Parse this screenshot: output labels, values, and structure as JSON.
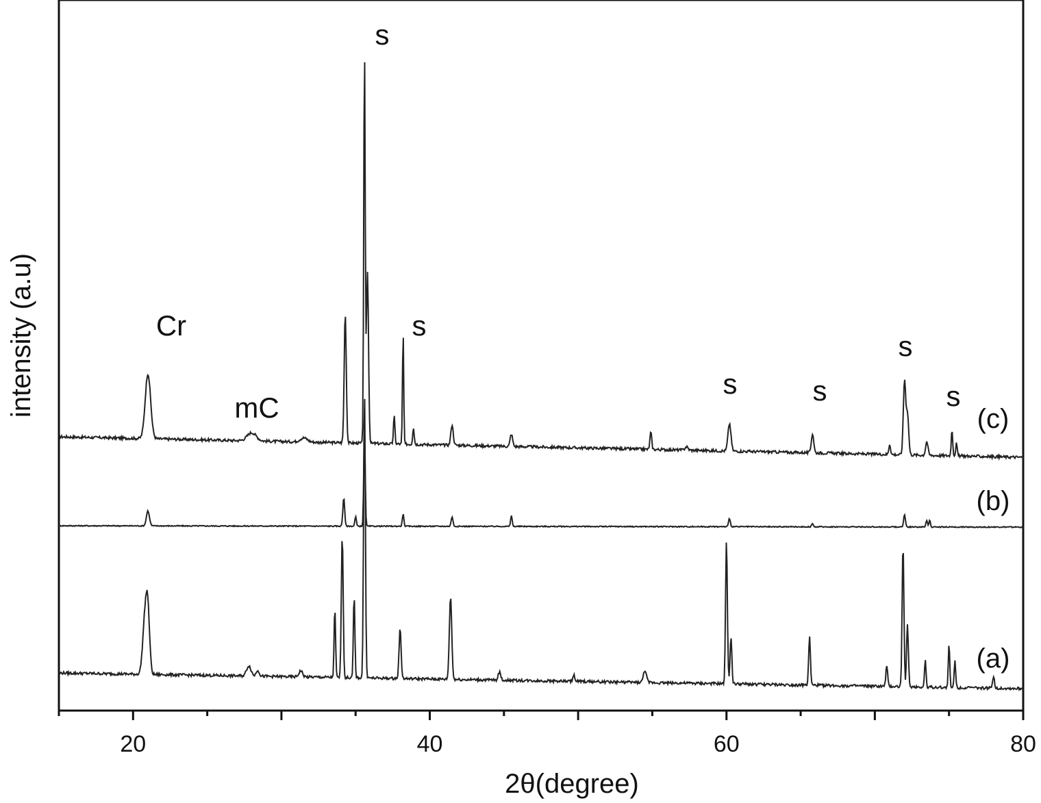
{
  "chart_data": {
    "type": "line",
    "title": "",
    "xlabel": "2θ(degree)",
    "ylabel": "intensity (a.u)",
    "xlim": [
      15,
      80
    ],
    "x_ticks": [
      20,
      40,
      60,
      80
    ],
    "x_tick_labels": [
      "20",
      "40",
      "60",
      "80"
    ],
    "y_tick_labels": [],
    "grid": false,
    "legend": "none",
    "line_color": "#222222",
    "series": [
      {
        "name": "(c)",
        "baseline_start": 190,
        "baseline_end": 160,
        "peaks": [
          {
            "x": 21.0,
            "h": 95,
            "w": 0.18
          },
          {
            "x": 28.0,
            "h": 12,
            "w": 0.3
          },
          {
            "x": 31.5,
            "h": 6,
            "w": 0.25
          },
          {
            "x": 34.3,
            "h": 190,
            "w": 0.07
          },
          {
            "x": 35.6,
            "h": 570,
            "w": 0.05
          },
          {
            "x": 35.8,
            "h": 250,
            "w": 0.07
          },
          {
            "x": 37.6,
            "h": 40,
            "w": 0.05
          },
          {
            "x": 38.2,
            "h": 165,
            "w": 0.04
          },
          {
            "x": 38.9,
            "h": 25,
            "w": 0.05
          },
          {
            "x": 41.5,
            "h": 30,
            "w": 0.08
          },
          {
            "x": 45.5,
            "h": 18,
            "w": 0.08
          },
          {
            "x": 54.9,
            "h": 25,
            "w": 0.06
          },
          {
            "x": 57.3,
            "h": 5,
            "w": 0.1
          },
          {
            "x": 60.2,
            "h": 40,
            "w": 0.1
          },
          {
            "x": 65.8,
            "h": 28,
            "w": 0.08
          },
          {
            "x": 71.0,
            "h": 15,
            "w": 0.06
          },
          {
            "x": 72.0,
            "h": 108,
            "w": 0.08
          },
          {
            "x": 72.2,
            "h": 60,
            "w": 0.08
          },
          {
            "x": 73.5,
            "h": 20,
            "w": 0.08
          },
          {
            "x": 75.2,
            "h": 38,
            "w": 0.05
          },
          {
            "x": 75.5,
            "h": 18,
            "w": 0.05
          }
        ]
      },
      {
        "name": "(b)",
        "baseline_start": 70,
        "baseline_end": 68,
        "peaks": [
          {
            "x": 21.0,
            "h": 22,
            "w": 0.1
          },
          {
            "x": 34.2,
            "h": 42,
            "w": 0.06
          },
          {
            "x": 35.0,
            "h": 14,
            "w": 0.05
          },
          {
            "x": 35.6,
            "h": 140,
            "w": 0.05
          },
          {
            "x": 38.2,
            "h": 18,
            "w": 0.05
          },
          {
            "x": 41.5,
            "h": 14,
            "w": 0.06
          },
          {
            "x": 45.5,
            "h": 16,
            "w": 0.05
          },
          {
            "x": 60.2,
            "h": 12,
            "w": 0.06
          },
          {
            "x": 65.8,
            "h": 4,
            "w": 0.06
          },
          {
            "x": 72.0,
            "h": 18,
            "w": 0.06
          },
          {
            "x": 73.5,
            "h": 10,
            "w": 0.05
          },
          {
            "x": 73.7,
            "h": 10,
            "w": 0.05
          }
        ]
      },
      {
        "name": "(a)",
        "baseline_start": 55,
        "baseline_end": 32,
        "peaks": [
          {
            "x": 20.8,
            "h": 80,
            "w": 0.15
          },
          {
            "x": 21.0,
            "h": 80,
            "w": 0.12
          },
          {
            "x": 27.8,
            "h": 15,
            "w": 0.15
          },
          {
            "x": 28.4,
            "h": 9,
            "w": 0.1
          },
          {
            "x": 31.3,
            "h": 9,
            "w": 0.12
          },
          {
            "x": 33.6,
            "h": 100,
            "w": 0.05
          },
          {
            "x": 34.1,
            "h": 210,
            "w": 0.06
          },
          {
            "x": 34.9,
            "h": 120,
            "w": 0.05
          },
          {
            "x": 35.6,
            "h": 420,
            "w": 0.06
          },
          {
            "x": 38.0,
            "h": 72,
            "w": 0.07
          },
          {
            "x": 41.4,
            "h": 120,
            "w": 0.08
          },
          {
            "x": 44.7,
            "h": 12,
            "w": 0.08
          },
          {
            "x": 49.7,
            "h": 10,
            "w": 0.06
          },
          {
            "x": 54.5,
            "h": 18,
            "w": 0.1
          },
          {
            "x": 60.0,
            "h": 210,
            "w": 0.06
          },
          {
            "x": 60.3,
            "h": 70,
            "w": 0.06
          },
          {
            "x": 65.6,
            "h": 70,
            "w": 0.06
          },
          {
            "x": 70.8,
            "h": 30,
            "w": 0.06
          },
          {
            "x": 71.9,
            "h": 210,
            "w": 0.06
          },
          {
            "x": 72.2,
            "h": 90,
            "w": 0.06
          },
          {
            "x": 73.4,
            "h": 40,
            "w": 0.05
          },
          {
            "x": 75.0,
            "h": 62,
            "w": 0.05
          },
          {
            "x": 75.4,
            "h": 40,
            "w": 0.05
          },
          {
            "x": 78.0,
            "h": 18,
            "w": 0.06
          }
        ]
      }
    ],
    "annotations": [
      {
        "text": "Cr",
        "x": 21.0,
        "series": "(c)",
        "dy": 0
      },
      {
        "text": "mC",
        "x": 28.0,
        "series": "(c)",
        "dy": 0
      },
      {
        "text": "s",
        "x": 36.2,
        "series": "(c)",
        "dy": 0
      },
      {
        "text": "s",
        "x": 38.8,
        "series": "(c)",
        "dy": 0
      },
      {
        "text": "s",
        "x": 60.2,
        "series": "(c)",
        "dy": 0
      },
      {
        "text": "s",
        "x": 66.0,
        "series": "(c)",
        "dy": 0
      },
      {
        "text": "s",
        "x": 72.0,
        "series": "(c)",
        "dy": 0
      },
      {
        "text": "s",
        "x": 74.9,
        "series": "(c)",
        "dy": 0
      }
    ]
  }
}
